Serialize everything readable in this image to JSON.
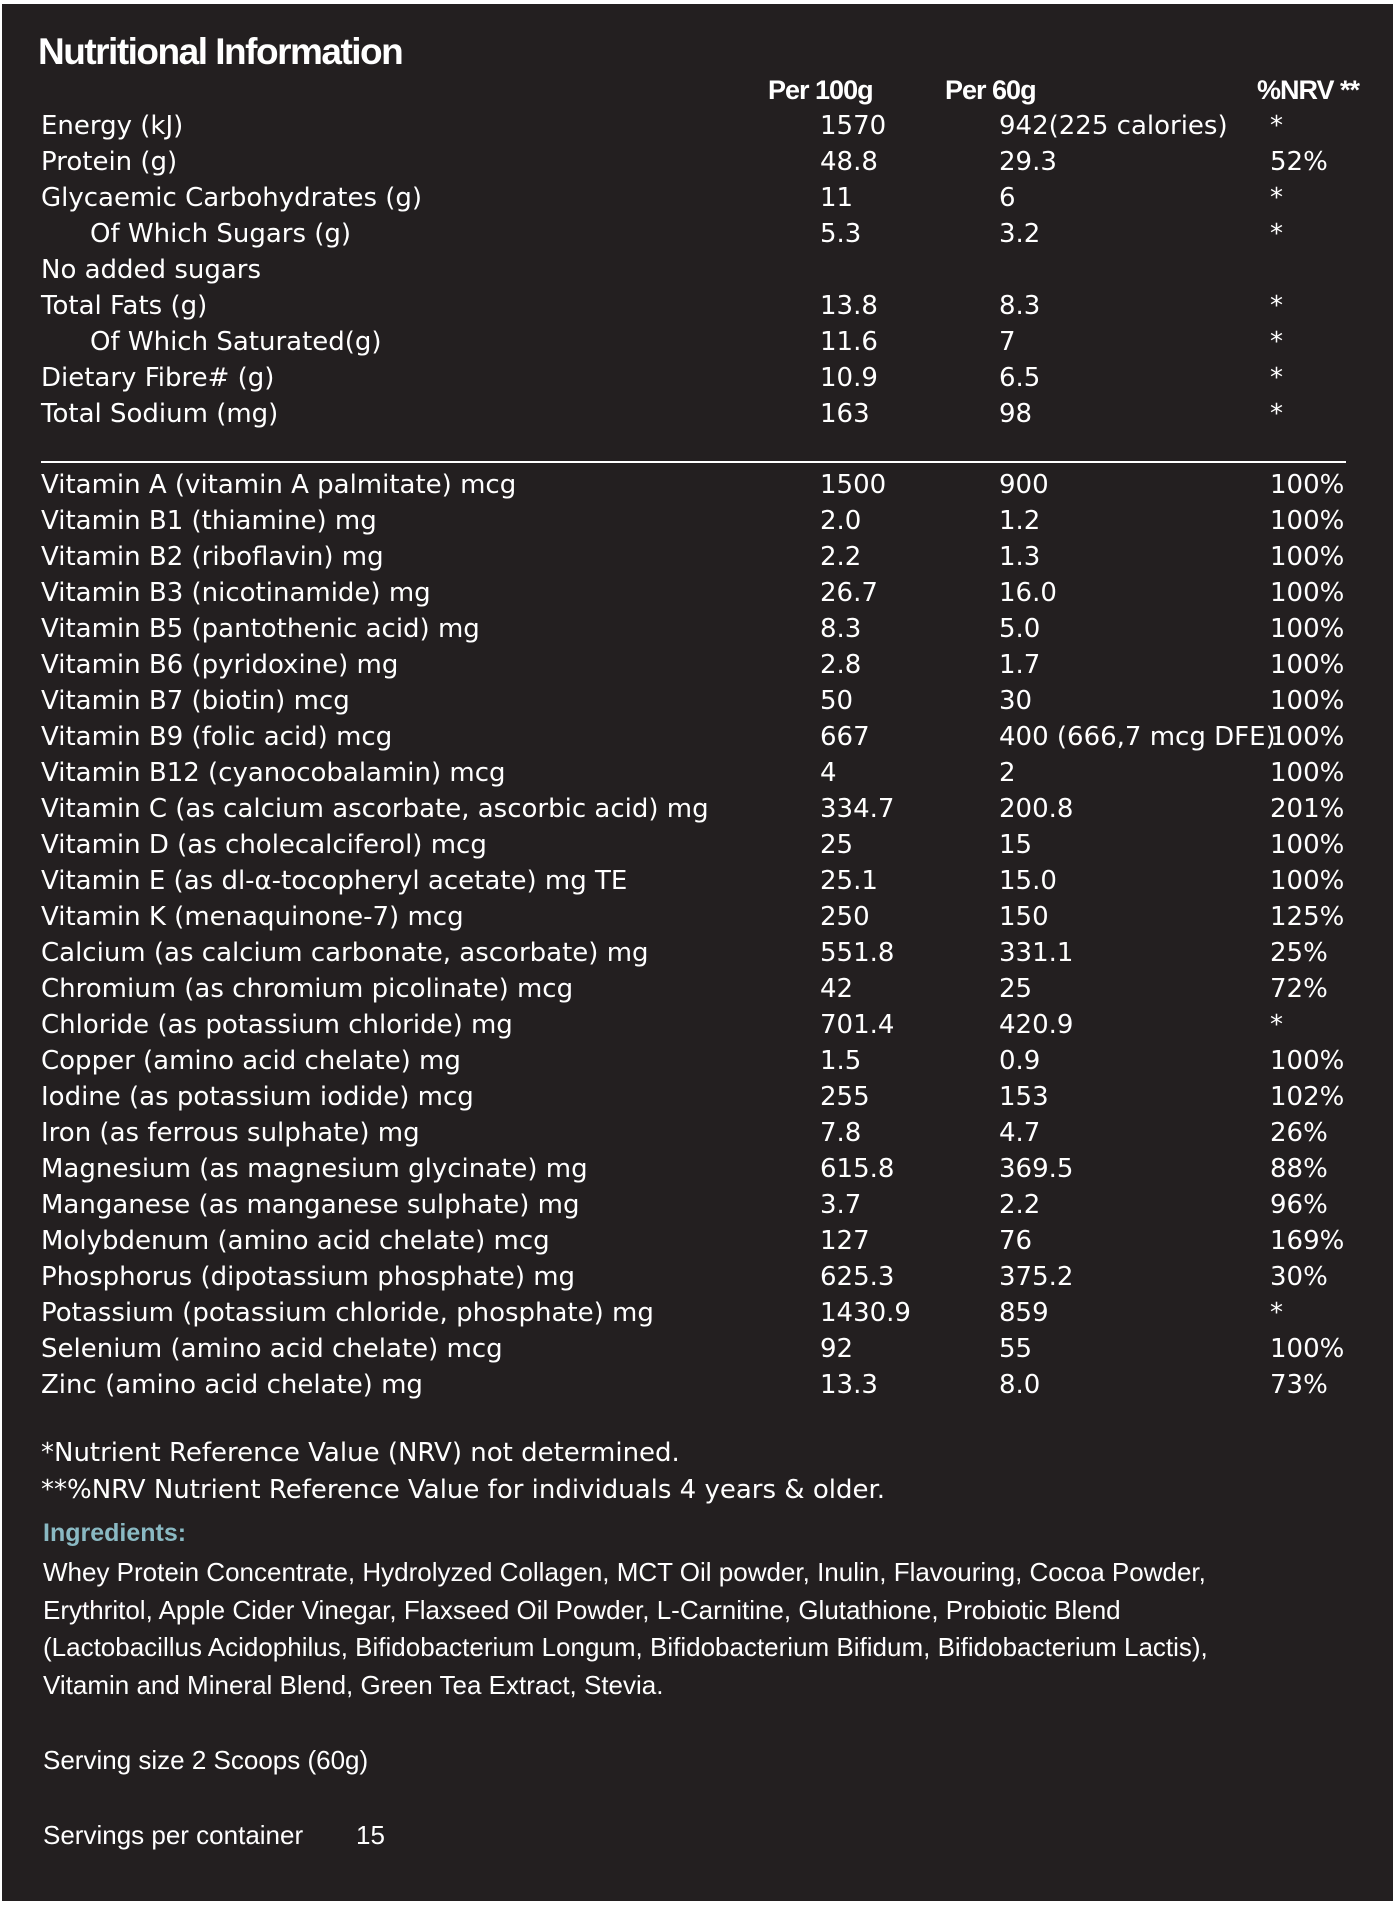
{
  "title": "Nutritional Information",
  "table": {
    "headers": [
      "Per 100g",
      "Per 60g",
      "%NRV **"
    ],
    "macros": [
      [
        "Energy (kJ)",
        "1570",
        "942(225 calories)",
        "*"
      ],
      [
        "Protein (g)",
        "48.8",
        "29.3",
        "52%"
      ],
      [
        "Glycaemic Carbohydrates (g)",
        "11",
        "6",
        "*"
      ],
      [
        "Of Which Sugars (g)",
        "5.3",
        "3.2",
        "*"
      ],
      [
        "No added sugars"
      ],
      [
        "Total Fats (g)",
        "13.8",
        "8.3",
        "*"
      ],
      [
        "Of Which Saturated(g)",
        "11.6",
        "7",
        "*"
      ],
      [
        "Dietary Fibre# (g)",
        "10.9",
        "6.5",
        "*"
      ],
      [
        "Total Sodium (mg)",
        "163",
        "98",
        "*"
      ]
    ],
    "micros": [
      [
        "Vitamin A (vitamin A palmitate) mcg",
        "1500",
        "900",
        "100%"
      ],
      [
        "Vitamin B1 (thiamine) mg",
        "2.0",
        "1.2",
        "100%"
      ],
      [
        "Vitamin B2 (riboflavin) mg",
        "2.2",
        "1.3",
        "100%"
      ],
      [
        "Vitamin B3 (nicotinamide) mg",
        "26.7",
        "16.0",
        "100%"
      ],
      [
        "Vitamin B5 (pantothenic acid) mg",
        "8.3",
        "5.0",
        "100%"
      ],
      [
        "Vitamin B6 (pyridoxine) mg",
        "2.8",
        "1.7",
        "100%"
      ],
      [
        "Vitamin B7 (biotin) mcg",
        "50",
        "30",
        "100%"
      ],
      [
        "Vitamin B9 (folic acid) mcg",
        "667",
        "400 (666,7 mcg DFE)",
        "100%"
      ],
      [
        "Vitamin B12 (cyanocobalamin) mcg",
        "4",
        "2",
        "100%"
      ],
      [
        "Vitamin C (as calcium ascorbate, ascorbic acid) mg",
        "334.7",
        "200.8",
        "201%"
      ],
      [
        "Vitamin D (as cholecalciferol) mcg",
        "25",
        "15",
        "100%"
      ],
      [
        "Vitamin E (as dl-α-tocopheryl acetate) mg TE",
        "25.1",
        "15.0",
        "100%"
      ],
      [
        "Vitamin K (menaquinone-7) mcg",
        "250",
        "150",
        "125%"
      ],
      [
        "Calcium (as calcium carbonate, ascorbate) mg",
        "551.8",
        "331.1",
        "25%"
      ],
      [
        "Chromium (as chromium picolinate) mcg",
        "42",
        "25",
        "72%"
      ],
      [
        "Chloride (as potassium chloride) mg",
        "701.4",
        "420.9",
        "*"
      ],
      [
        "Copper (amino acid chelate) mg",
        "1.5",
        "0.9",
        "100%"
      ],
      [
        "Iodine (as potassium iodide) mcg",
        "255",
        "153",
        "102%"
      ],
      [
        "Iron (as ferrous sulphate) mg",
        "7.8",
        "4.7",
        "26%"
      ],
      [
        "Magnesium (as magnesium glycinate) mg",
        "615.8",
        "369.5",
        "88%"
      ],
      [
        "Manganese (as manganese sulphate) mg",
        "3.7",
        "2.2",
        "96%"
      ],
      [
        "Molybdenum (amino acid chelate) mcg",
        "127",
        "76",
        "169%"
      ],
      [
        "Phosphorus (dipotassium phosphate) mg",
        "625.3",
        "375.2",
        "30%"
      ],
      [
        "Potassium (potassium chloride, phosphate) mg",
        "1430.9",
        "859",
        "*"
      ],
      [
        "Selenium (amino acid chelate) mcg",
        "92",
        "55",
        "100%"
      ],
      [
        "Zinc (amino acid chelate) mg",
        "13.3",
        "8.0",
        "73%"
      ]
    ]
  },
  "footnotes": [
    "*Nutrient Reference Value (NRV) not determined.",
    "**%NRV Nutrient Reference Value for individuals 4 years & older."
  ],
  "ingredients": {
    "heading": "Ingredients:",
    "lines": [
      "Whey Protein Concentrate, Hydrolyzed Collagen, MCT Oil powder, Inulin, Flavouring, Cocoa Powder,",
      "Erythritol, Apple Cider Vinegar, Flaxseed Oil Powder, L-Carnitine, Glutathione, Probiotic Blend",
      "(Lactobacillus Acidophilus, Bifidobacterium Longum, Bifidobacterium Bifidum, Bifidobacterium Lactis),",
      "Vitamin and Mineral Blend, Green Tea Extract, Stevia."
    ]
  },
  "serving_size": "Serving size 2 Scoops (60g)",
  "servings": {
    "label": "Servings per container",
    "value": "15"
  }
}
